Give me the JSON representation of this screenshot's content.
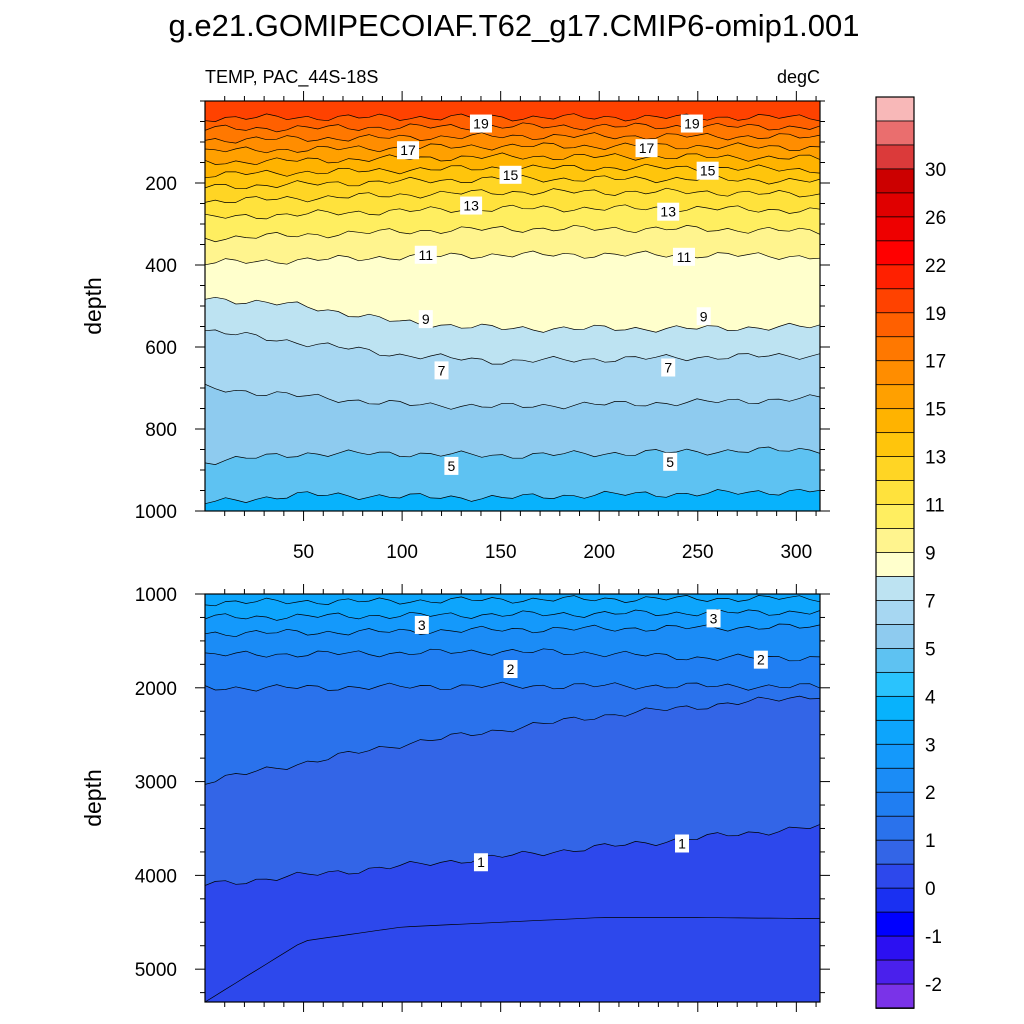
{
  "figure": {
    "title": "g.e21.GOMIPECOIAF.T62_g17.CMIP6-omip1.001",
    "left_subtitle": "TEMP, PAC_44S-18S",
    "right_subtitle": "degC"
  },
  "chart_data": [
    {
      "type": "heatmap",
      "panel": "upper",
      "variable": "TEMP",
      "region": "PAC_44S-18S",
      "units": "degC",
      "ylabel": "depth",
      "xlabel": "",
      "xlim": [
        0,
        312
      ],
      "ylim": [
        0,
        1000
      ],
      "y_inverted": true,
      "xticks": [
        50,
        100,
        150,
        200,
        250,
        300
      ],
      "yticks": [
        200,
        400,
        600,
        800,
        1000
      ],
      "isotherm_depth_at_x": {
        "x": [
          0,
          50,
          100,
          150,
          200,
          250,
          312
        ],
        "levels": [
          {
            "t": 19,
            "depth": [
              42,
              40,
              40,
              40,
              40,
              40,
              40
            ]
          },
          {
            "t": 18,
            "depth": [
              68,
              66,
              64,
              62,
              62,
              62,
              64
            ]
          },
          {
            "t": 17,
            "depth": [
              95,
              92,
              89,
              86,
              86,
              86,
              88
            ]
          },
          {
            "t": 16,
            "depth": [
              122,
              118,
              114,
              110,
              110,
              110,
              114
            ]
          },
          {
            "t": 15,
            "depth": [
              150,
              145,
              140,
              136,
              136,
              136,
              140
            ]
          },
          {
            "t": 14,
            "depth": [
              180,
              174,
              168,
              163,
              163,
              163,
              168
            ]
          },
          {
            "t": 13,
            "depth": [
              210,
              203,
              196,
              190,
              190,
              190,
              196
            ]
          },
          {
            "t": 12,
            "depth": [
              245,
              237,
              229,
              222,
              222,
              222,
              229
            ]
          },
          {
            "t": 11,
            "depth": [
              285,
              276,
              268,
              262,
              262,
              262,
              268
            ]
          },
          {
            "t": 10,
            "depth": [
              335,
              327,
              318,
              312,
              312,
              312,
              318
            ]
          },
          {
            "t": 9,
            "depth": [
              395,
              388,
              380,
              375,
              375,
              375,
              380
            ]
          },
          {
            "t": 8,
            "depth": [
              480,
              500,
              540,
              555,
              555,
              555,
              550
            ]
          },
          {
            "t": 7,
            "depth": [
              560,
              590,
              620,
              635,
              630,
              625,
              620
            ]
          },
          {
            "t": 6,
            "depth": [
              700,
              720,
              740,
              745,
              740,
              735,
              725
            ]
          },
          {
            "t": 5,
            "depth": [
              880,
              860,
              860,
              865,
              860,
              855,
              850
            ]
          },
          {
            "t": 4,
            "depth": [
              980,
              960,
              965,
              968,
              960,
              958,
              950
            ]
          }
        ]
      },
      "contour_labels": [
        {
          "text": "19",
          "x": 140,
          "depth": 55
        },
        {
          "text": "19",
          "x": 247,
          "depth": 55
        },
        {
          "text": "17",
          "x": 103,
          "depth": 120
        },
        {
          "text": "17",
          "x": 224,
          "depth": 115
        },
        {
          "text": "15",
          "x": 155,
          "depth": 180
        },
        {
          "text": "15",
          "x": 255,
          "depth": 170
        },
        {
          "text": "13",
          "x": 135,
          "depth": 255
        },
        {
          "text": "13",
          "x": 235,
          "depth": 270
        },
        {
          "text": "11",
          "x": 112,
          "depth": 375
        },
        {
          "text": "11",
          "x": 243,
          "depth": 380
        },
        {
          "text": "9",
          "x": 112,
          "depth": 532
        },
        {
          "text": "9",
          "x": 253,
          "depth": 525
        },
        {
          "text": "7",
          "x": 120,
          "depth": 657
        },
        {
          "text": "7",
          "x": 235,
          "depth": 650
        },
        {
          "text": "5",
          "x": 125,
          "depth": 890
        },
        {
          "text": "5",
          "x": 236,
          "depth": 880
        }
      ]
    },
    {
      "type": "heatmap",
      "panel": "lower",
      "variable": "TEMP",
      "region": "PAC_44S-18S",
      "units": "degC",
      "ylabel": "depth",
      "xlabel": "",
      "xlim": [
        0,
        312
      ],
      "ylim": [
        1000,
        5350
      ],
      "y_inverted": true,
      "xticks": [
        50,
        100,
        150,
        200,
        250,
        300
      ],
      "yticks": [
        1000,
        2000,
        3000,
        4000,
        5000
      ],
      "isotherm_depth_at_x": {
        "x": [
          0,
          50,
          100,
          150,
          200,
          250,
          312
        ],
        "levels": [
          {
            "t": 3.5,
            "depth": [
              1090,
              1080,
              1075,
              1060,
              1055,
              1050,
              1045
            ]
          },
          {
            "t": 3,
            "depth": [
              1250,
              1240,
              1230,
              1220,
              1210,
              1200,
              1190
            ]
          },
          {
            "t": 2.5,
            "depth": [
              1420,
              1410,
              1400,
              1380,
              1370,
              1360,
              1350
            ]
          },
          {
            "t": 2,
            "depth": [
              1650,
              1640,
              1630,
              1610,
              1630,
              1680,
              1680
            ]
          },
          {
            "t": 1.5,
            "depth": [
              2000,
              2000,
              1990,
              1980,
              1980,
              1980,
              1990
            ]
          },
          {
            "t": 1,
            "depth": [
              3000,
              2800,
              2600,
              2450,
              2300,
              2200,
              2080
            ]
          },
          {
            "t": 0.5,
            "depth": [
              4100,
              4000,
              3900,
              3800,
              3700,
              3600,
              3480
            ]
          }
        ],
        "coldest_region": {
          "t": 0,
          "depth": [
            5350,
            4700,
            4550,
            4500,
            4450,
            4450,
            4460
          ]
        }
      },
      "contour_labels": [
        {
          "text": "3",
          "x": 110,
          "depth": 1330
        },
        {
          "text": "3",
          "x": 258,
          "depth": 1260
        },
        {
          "text": "2",
          "x": 155,
          "depth": 1800
        },
        {
          "text": "2",
          "x": 282,
          "depth": 1700
        },
        {
          "text": "1",
          "x": 140,
          "depth": 3860
        },
        {
          "text": "1",
          "x": 242,
          "depth": 3660
        }
      ]
    }
  ],
  "colorbar": {
    "segments": [
      {
        "color": "#f8b8b8"
      },
      {
        "color": "#ea6e6e"
      },
      {
        "color": "#db3a3a",
        "label": "30"
      },
      {
        "color": "#cc0000"
      },
      {
        "color": "#e00000",
        "label": "26"
      },
      {
        "color": "#ee0000"
      },
      {
        "color": "#ff0000",
        "label": "22"
      },
      {
        "color": "#ff2000"
      },
      {
        "color": "#ff4200",
        "label": "19"
      },
      {
        "color": "#ff6000"
      },
      {
        "color": "#ff7800",
        "label": "17"
      },
      {
        "color": "#ff8d00"
      },
      {
        "color": "#ffa000",
        "label": "15"
      },
      {
        "color": "#ffb300"
      },
      {
        "color": "#ffc50c",
        "label": "13"
      },
      {
        "color": "#ffd524"
      },
      {
        "color": "#ffe23c",
        "label": "11"
      },
      {
        "color": "#ffee60"
      },
      {
        "color": "#fff48e",
        "label": "9"
      },
      {
        "color": "#ffffcc"
      },
      {
        "color": "#bde3f2",
        "label": "7"
      },
      {
        "color": "#a7d7f2"
      },
      {
        "color": "#8ecbef",
        "label": "5"
      },
      {
        "color": "#5ec2f2"
      },
      {
        "color": "#2ac3fd",
        "label": "4"
      },
      {
        "color": "#08b2fc"
      },
      {
        "color": "#0da5fc",
        "label": "3"
      },
      {
        "color": "#1499fb"
      },
      {
        "color": "#1b8cf6",
        "label": "2"
      },
      {
        "color": "#207ef2"
      },
      {
        "color": "#2a72ec",
        "label": "1"
      },
      {
        "color": "#3365e7"
      },
      {
        "color": "#2d48ec",
        "label": "0"
      },
      {
        "color": "#1a30f2"
      },
      {
        "color": "#0000ff",
        "label": "-1"
      },
      {
        "color": "#2c10f2"
      },
      {
        "color": "#4a20ec",
        "label": "-2"
      },
      {
        "color": "#7a33e8"
      }
    ]
  }
}
